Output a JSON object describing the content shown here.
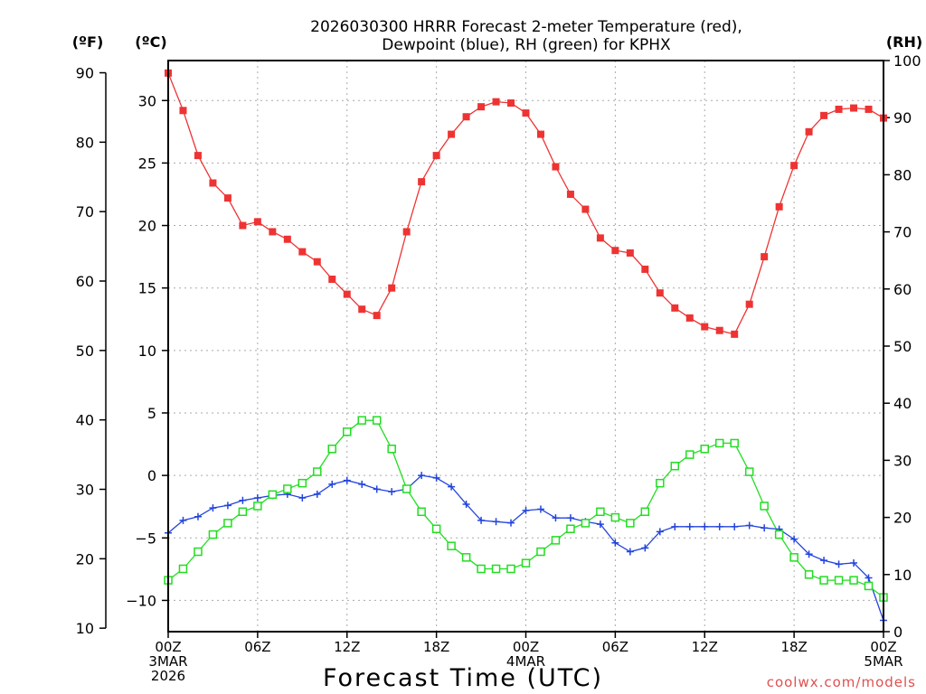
{
  "chart_data": {
    "type": "line",
    "title_line1": "2026030300 HRRR Forecast 2-meter Temperature (red),",
    "title_line2": "Dewpoint (blue), RH (green) for KPHX",
    "left_axis_f_label": "(ºF)",
    "left_axis_c_label": "(ºC)",
    "right_axis_label": "(RH)",
    "xlabel": "Forecast Time (UTC)",
    "credit": "coolwx.com/models",
    "x_hours_range": [
      0,
      48
    ],
    "x_ticks": [
      {
        "h": 0,
        "lines": [
          "00Z",
          "3MAR",
          "2026"
        ]
      },
      {
        "h": 6,
        "lines": [
          "06Z"
        ]
      },
      {
        "h": 12,
        "lines": [
          "12Z"
        ]
      },
      {
        "h": 18,
        "lines": [
          "18Z"
        ]
      },
      {
        "h": 24,
        "lines": [
          "00Z",
          "4MAR"
        ]
      },
      {
        "h": 30,
        "lines": [
          "06Z"
        ]
      },
      {
        "h": 36,
        "lines": [
          "12Z"
        ]
      },
      {
        "h": 42,
        "lines": [
          "18Z"
        ]
      },
      {
        "h": 48,
        "lines": [
          "00Z",
          "5MAR"
        ]
      }
    ],
    "celsius_range": [
      -12.5,
      33.2
    ],
    "celsius_ticks": [
      -10,
      -5,
      0,
      5,
      10,
      15,
      20,
      25,
      30
    ],
    "fahrenheit_ticks": [
      10,
      20,
      30,
      40,
      50,
      60,
      70,
      80,
      90
    ],
    "rh_range": [
      0,
      100
    ],
    "rh_ticks": [
      0,
      10,
      20,
      30,
      40,
      50,
      60,
      70,
      80,
      90,
      100
    ],
    "grid": true,
    "series": [
      {
        "name": "Temperature",
        "color": "#ee3333",
        "marker": "filled-square",
        "unit": "C",
        "values": [
          32.2,
          29.2,
          25.6,
          23.4,
          22.2,
          20.0,
          20.3,
          19.5,
          18.9,
          17.9,
          17.1,
          15.7,
          14.5,
          13.3,
          12.8,
          15.0,
          19.5,
          23.5,
          25.6,
          27.3,
          28.7,
          29.5,
          29.9,
          29.8,
          29.0,
          27.3,
          24.7,
          22.5,
          21.3,
          19.0,
          18.0,
          17.8,
          16.5,
          14.6,
          13.4,
          12.6,
          11.9,
          11.6,
          11.3,
          13.7,
          17.5,
          21.5,
          24.8,
          27.5,
          28.8,
          29.3,
          29.4,
          29.3,
          28.6
        ]
      },
      {
        "name": "Dewpoint",
        "color": "#2244dd",
        "marker": "plus",
        "unit": "C",
        "values": [
          -4.6,
          -3.6,
          -3.3,
          -2.6,
          -2.4,
          -2.0,
          -1.8,
          -1.6,
          -1.5,
          -1.8,
          -1.5,
          -0.7,
          -0.4,
          -0.7,
          -1.1,
          -1.3,
          -1.1,
          0.0,
          -0.2,
          -0.9,
          -2.3,
          -3.6,
          -3.7,
          -3.8,
          -2.8,
          -2.7,
          -3.4,
          -3.4,
          -3.7,
          -3.9,
          -5.4,
          -6.1,
          -5.8,
          -4.5,
          -4.1,
          -4.1,
          -4.1,
          -4.1,
          -4.1,
          -4.0,
          -4.2,
          -4.3,
          -5.1,
          -6.3,
          -6.8,
          -7.1,
          -7.0,
          -8.2,
          -11.6
        ]
      },
      {
        "name": "RH",
        "color": "#22dd22",
        "marker": "open-square",
        "unit": "%",
        "values": [
          9,
          11,
          14,
          17,
          19,
          21,
          22,
          24,
          25,
          26,
          28,
          32,
          35,
          37,
          37,
          32,
          25,
          21,
          18,
          15,
          13,
          11,
          11,
          11,
          12,
          14,
          16,
          18,
          19,
          21,
          20,
          19,
          21,
          26,
          29,
          31,
          32,
          33,
          33,
          28,
          22,
          17,
          13,
          10,
          9,
          9,
          9,
          8,
          6
        ]
      }
    ]
  }
}
